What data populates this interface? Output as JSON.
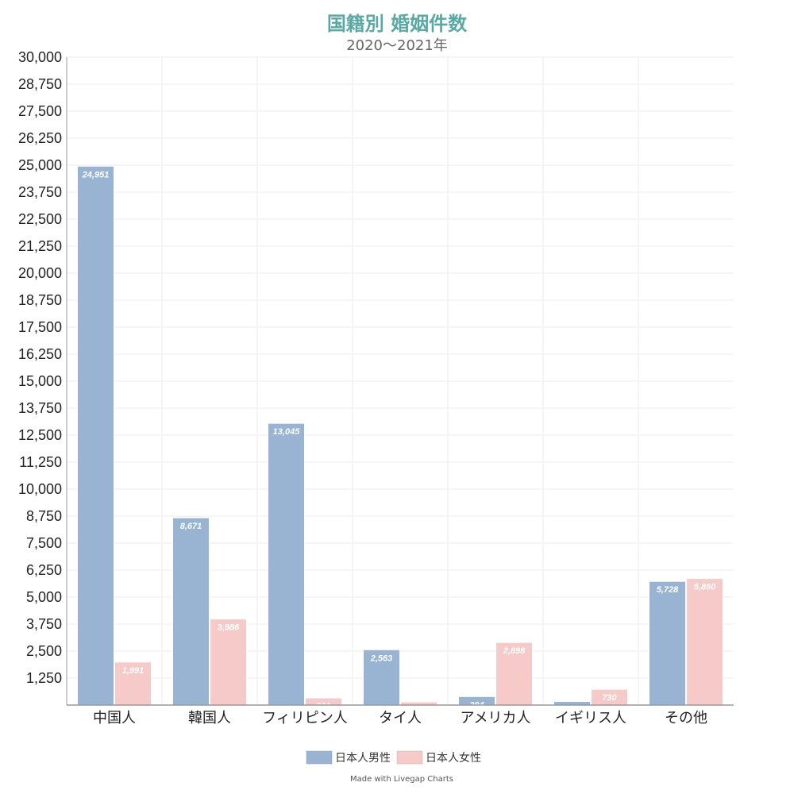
{
  "chart_data": {
    "type": "bar",
    "title": "国籍別 婚姻件数",
    "subtitle": "2020～2021年",
    "categories": [
      "中国人",
      "韓国人",
      "フィリピン人",
      "タイ人",
      "アメリカ人",
      "イギリス人",
      "その他"
    ],
    "series": [
      {
        "name": "日本人男性",
        "color": "#98b4d2",
        "values": [
          24951,
          8671,
          13045,
          2563,
          394,
          165,
          5728
        ]
      },
      {
        "name": "日本人女性",
        "color": "#f5cac8",
        "values": [
          1991,
          3986,
          331,
          146,
          2898,
          730,
          5860
        ]
      }
    ],
    "ylim": [
      0,
      30000
    ],
    "yticks": [
      1250,
      2500,
      3750,
      5000,
      6250,
      7500,
      8750,
      10000,
      11250,
      12500,
      13750,
      15000,
      16250,
      17500,
      18750,
      20000,
      21250,
      22500,
      23750,
      25000,
      26250,
      27500,
      28750,
      30000
    ],
    "grid": true,
    "legend_position": "bottom"
  },
  "footer": {
    "credit": "Made with Livegap Charts"
  }
}
